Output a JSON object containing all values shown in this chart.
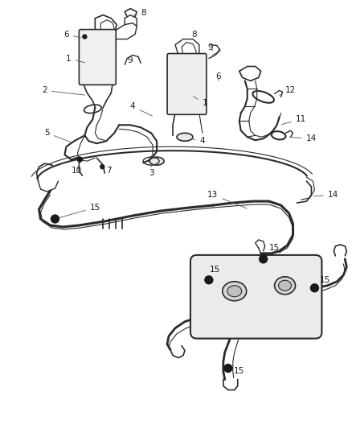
{
  "background_color": "#ffffff",
  "line_color": "#2a2a2a",
  "label_color": "#1a1a1a",
  "label_fontsize": 7.5,
  "fig_width": 4.38,
  "fig_height": 5.33,
  "dpi": 100
}
